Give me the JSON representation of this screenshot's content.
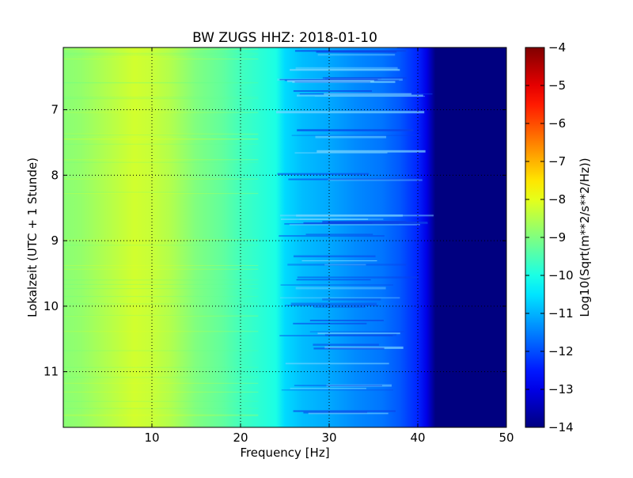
{
  "chart_data": {
    "type": "heatmap",
    "title": "BW ZUGS HHZ: 2018-01-10",
    "xlabel": "Frequency [Hz]",
    "ylabel": "Lokalzeit (UTC + 1 Stunde)",
    "xlim": [
      0,
      50
    ],
    "ylim": [
      6.05,
      11.85
    ],
    "y_inverted": true,
    "x_ticks": [
      10,
      20,
      30,
      40,
      50
    ],
    "y_ticks": [
      7,
      8,
      9,
      10,
      11
    ],
    "grid": true,
    "colormap": "jet",
    "colorbar": {
      "label": "Log10(Sqrt(m**2/s**2/Hz))",
      "range": [
        -14,
        -4
      ],
      "ticks": [
        -4,
        -5,
        -6,
        -7,
        -8,
        -9,
        -10,
        -11,
        -12,
        -13,
        -14
      ]
    },
    "spectrum_profile": {
      "frequency_hz": [
        0,
        2,
        5,
        8,
        10,
        12,
        15,
        18,
        20,
        22,
        24,
        25,
        27,
        30,
        33,
        36,
        38,
        40,
        41,
        42,
        50
      ],
      "log10_amplitude": [
        -8.9,
        -8.8,
        -8.5,
        -8.2,
        -8.3,
        -8.5,
        -9.0,
        -9.3,
        -9.6,
        -9.8,
        -10.0,
        -10.6,
        -10.9,
        -11.1,
        -11.4,
        -11.6,
        -11.9,
        -12.4,
        -13.0,
        -14.0,
        -14.0
      ]
    }
  }
}
